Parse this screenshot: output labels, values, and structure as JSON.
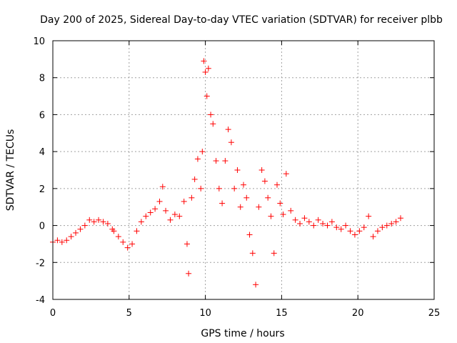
{
  "chart_data": {
    "type": "scatter",
    "title": "Day 200 of 2025, Sidereal Day-to-day VTEC variation (SDTVAR) for receiver plbb",
    "xlabel": "GPS time / hours",
    "ylabel": "SDTVAR / TECUs",
    "xlim": [
      0,
      25
    ],
    "ylim": [
      -4,
      10
    ],
    "xticks": [
      0,
      5,
      10,
      15,
      20,
      25
    ],
    "yticks": [
      -4,
      -2,
      0,
      2,
      4,
      6,
      8,
      10
    ],
    "grid": true,
    "marker": "+",
    "series": [
      {
        "name": "SDTVAR",
        "color": "#ff0000",
        "x": [
          0.0,
          0.3,
          0.6,
          0.9,
          1.2,
          1.5,
          1.8,
          2.1,
          2.4,
          2.7,
          3.0,
          3.3,
          3.6,
          3.9,
          4.0,
          4.3,
          4.6,
          4.9,
          5.2,
          5.5,
          5.8,
          6.1,
          6.4,
          6.7,
          7.0,
          7.2,
          7.4,
          7.7,
          8.0,
          8.3,
          8.6,
          8.8,
          8.9,
          9.1,
          9.3,
          9.5,
          9.7,
          9.8,
          9.9,
          10.0,
          10.1,
          10.2,
          10.35,
          10.5,
          10.7,
          10.9,
          11.1,
          11.3,
          11.5,
          11.7,
          11.9,
          12.1,
          12.3,
          12.5,
          12.7,
          12.9,
          13.1,
          13.3,
          13.5,
          13.7,
          13.9,
          14.1,
          14.3,
          14.5,
          14.7,
          14.9,
          15.1,
          15.3,
          15.6,
          15.9,
          16.2,
          16.5,
          16.8,
          17.1,
          17.4,
          17.7,
          18.0,
          18.3,
          18.6,
          18.9,
          19.2,
          19.5,
          19.8,
          20.1,
          20.4,
          20.7,
          21.0,
          21.3,
          21.6,
          21.9,
          22.2,
          22.5,
          22.8
        ],
        "y": [
          -0.9,
          -0.8,
          -0.9,
          -0.8,
          -0.6,
          -0.4,
          -0.2,
          0.0,
          0.3,
          0.2,
          0.3,
          0.2,
          0.1,
          -0.2,
          -0.3,
          -0.6,
          -0.9,
          -1.2,
          -1.0,
          -0.3,
          0.2,
          0.5,
          0.7,
          0.9,
          1.3,
          2.1,
          0.8,
          0.3,
          0.6,
          0.5,
          1.3,
          -1.0,
          -2.6,
          1.5,
          2.5,
          3.6,
          2.0,
          4.0,
          8.9,
          8.3,
          7.0,
          8.5,
          6.0,
          5.5,
          3.5,
          2.0,
          1.2,
          3.5,
          5.2,
          4.5,
          2.0,
          3.0,
          1.0,
          2.2,
          1.5,
          -0.5,
          -1.5,
          -3.2,
          1.0,
          3.0,
          2.4,
          1.5,
          0.5,
          -1.5,
          2.2,
          1.2,
          0.6,
          2.8,
          0.8,
          0.3,
          0.1,
          0.4,
          0.2,
          0.0,
          0.3,
          0.1,
          0.0,
          0.2,
          -0.1,
          -0.2,
          0.0,
          -0.3,
          -0.5,
          -0.3,
          -0.1,
          0.5,
          -0.6,
          -0.3,
          -0.1,
          0.0,
          0.1,
          0.2,
          0.4
        ]
      }
    ]
  }
}
